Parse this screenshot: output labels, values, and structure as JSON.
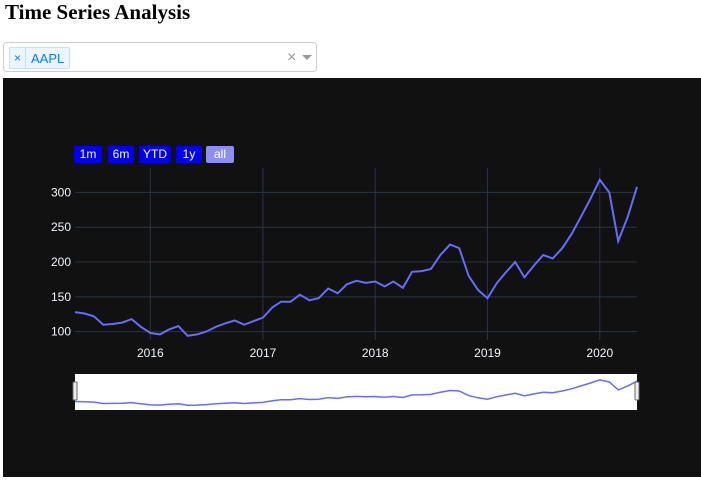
{
  "page": {
    "title": "Time Series Analysis"
  },
  "selector": {
    "selected": [
      "AAPL"
    ],
    "remove_glyph": "×",
    "clear_glyph": "×"
  },
  "range_selector": {
    "buttons": [
      "1m",
      "6m",
      "YTD",
      "1y",
      "all"
    ],
    "active": "all"
  },
  "colors": {
    "background": "#111111",
    "line": "#636efa",
    "grid": "#283442",
    "button": "#0000f0",
    "button_active": "#8e8ef0",
    "tag_text": "#007eff"
  },
  "chart_data": {
    "type": "line",
    "title": "",
    "xlabel": "",
    "ylabel": "",
    "x_ticks": [
      "2016",
      "2017",
      "2018",
      "2019",
      "2020"
    ],
    "y_ticks": [
      100,
      150,
      200,
      250,
      300
    ],
    "xlim": [
      "2015-05-01",
      "2020-05-01"
    ],
    "ylim": [
      88,
      335
    ],
    "grid": true,
    "series": [
      {
        "values": [
          [
            "2015-05-01",
            128
          ],
          [
            "2015-06-01",
            126
          ],
          [
            "2015-07-01",
            122
          ],
          [
            "2015-08-01",
            110
          ],
          [
            "2015-09-01",
            111
          ],
          [
            "2015-10-01",
            113
          ],
          [
            "2015-11-01",
            118
          ],
          [
            "2015-12-01",
            107
          ],
          [
            "2016-01-01",
            98
          ],
          [
            "2016-02-01",
            96
          ],
          [
            "2016-03-01",
            103
          ],
          [
            "2016-04-01",
            108
          ],
          [
            "2016-05-01",
            94
          ],
          [
            "2016-06-01",
            96
          ],
          [
            "2016-07-01",
            100
          ],
          [
            "2016-08-01",
            107
          ],
          [
            "2016-09-01",
            112
          ],
          [
            "2016-10-01",
            116
          ],
          [
            "2016-11-01",
            110
          ],
          [
            "2016-12-01",
            115
          ],
          [
            "2017-01-01",
            120
          ],
          [
            "2017-02-01",
            135
          ],
          [
            "2017-03-01",
            143
          ],
          [
            "2017-04-01",
            143
          ],
          [
            "2017-05-01",
            153
          ],
          [
            "2017-06-01",
            145
          ],
          [
            "2017-07-01",
            148
          ],
          [
            "2017-08-01",
            162
          ],
          [
            "2017-09-01",
            155
          ],
          [
            "2017-10-01",
            168
          ],
          [
            "2017-11-01",
            173
          ],
          [
            "2017-12-01",
            170
          ],
          [
            "2018-01-01",
            172
          ],
          [
            "2018-02-01",
            165
          ],
          [
            "2018-03-01",
            172
          ],
          [
            "2018-04-01",
            163
          ],
          [
            "2018-05-01",
            186
          ],
          [
            "2018-06-01",
            187
          ],
          [
            "2018-07-01",
            190
          ],
          [
            "2018-08-01",
            210
          ],
          [
            "2018-09-01",
            225
          ],
          [
            "2018-10-01",
            220
          ],
          [
            "2018-11-01",
            180
          ],
          [
            "2018-12-01",
            160
          ],
          [
            "2019-01-01",
            148
          ],
          [
            "2019-02-01",
            170
          ],
          [
            "2019-03-01",
            185
          ],
          [
            "2019-04-01",
            200
          ],
          [
            "2019-05-01",
            178
          ],
          [
            "2019-06-01",
            195
          ],
          [
            "2019-07-01",
            210
          ],
          [
            "2019-08-01",
            205
          ],
          [
            "2019-09-01",
            220
          ],
          [
            "2019-10-01",
            240
          ],
          [
            "2019-11-01",
            265
          ],
          [
            "2019-12-01",
            290
          ],
          [
            "2020-01-01",
            318
          ],
          [
            "2020-02-01",
            300
          ],
          [
            "2020-03-01",
            230
          ],
          [
            "2020-04-01",
            265
          ],
          [
            "2020-05-01",
            308
          ]
        ]
      }
    ]
  }
}
